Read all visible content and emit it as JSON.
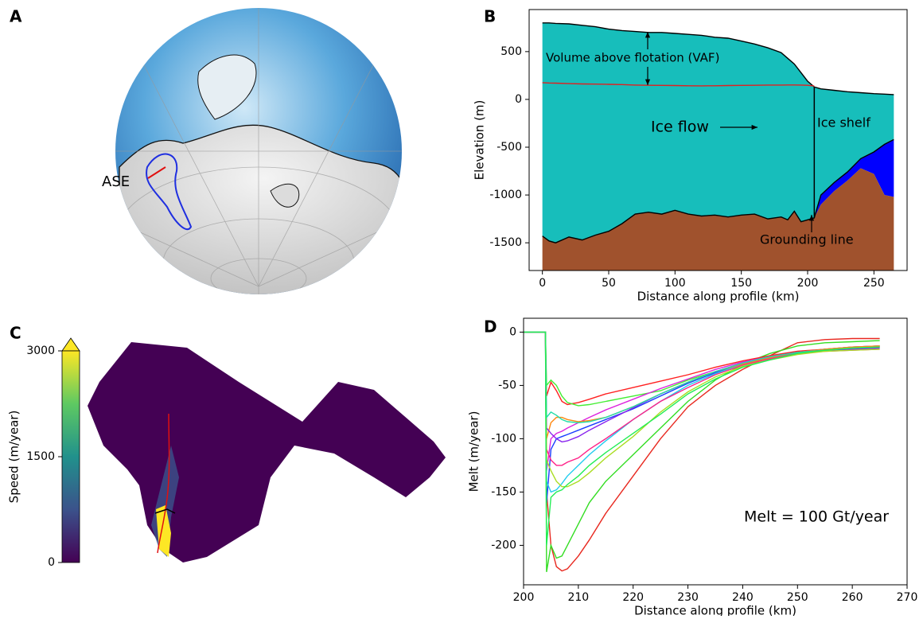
{
  "chart_data": [
    {
      "type": "map",
      "label": "A",
      "annotations": [
        "ASE"
      ]
    },
    {
      "type": "area",
      "label": "B",
      "x": [
        0,
        5,
        10,
        20,
        30,
        40,
        50,
        60,
        70,
        80,
        90,
        100,
        110,
        120,
        130,
        140,
        150,
        160,
        170,
        180,
        185,
        190,
        195,
        200,
        205,
        210,
        220,
        230,
        240,
        250,
        258,
        265
      ],
      "series": [
        {
          "color": "#000000",
          "values": [
            800,
            800,
            795,
            790,
            775,
            760,
            735,
            720,
            710,
            700,
            700,
            690,
            680,
            670,
            650,
            640,
            610,
            580,
            540,
            490,
            430,
            370,
            280,
            190,
            130,
            110,
            95,
            80,
            70,
            60,
            55,
            50
          ]
        },
        {
          "color": "#0000ff",
          "values": [
            -1430,
            -1480,
            -1500,
            -1440,
            -1470,
            -1420,
            -1380,
            -1300,
            -1200,
            -1180,
            -1200,
            -1160,
            -1200,
            -1220,
            -1210,
            -1230,
            -1210,
            -1200,
            -1250,
            -1230,
            -1260,
            -1170,
            -1280,
            -1260,
            -1240,
            -1000,
            -870,
            -760,
            -620,
            -550,
            -470,
            -420
          ]
        },
        {
          "color": "#a0522d",
          "values": [
            -1430,
            -1480,
            -1500,
            -1440,
            -1470,
            -1420,
            -1380,
            -1300,
            -1200,
            -1180,
            -1200,
            -1160,
            -1200,
            -1220,
            -1210,
            -1230,
            -1210,
            -1200,
            -1250,
            -1230,
            -1260,
            -1170,
            -1280,
            -1260,
            -1240,
            -1100,
            -960,
            -850,
            -720,
            -780,
            -1000,
            -1020
          ]
        },
        {
          "color": "#e02020",
          "values": [
            175,
            172,
            170,
            165,
            162,
            160,
            158,
            155,
            150,
            148,
            147,
            145,
            143,
            142,
            143,
            145,
            147,
            148,
            150,
            150,
            151,
            151,
            150,
            148,
            140,
            null,
            null,
            null,
            null,
            null,
            null,
            null
          ]
        }
      ],
      "ice_color": "#17bebb",
      "grounding_line": 205,
      "xlim": [
        -10,
        275
      ],
      "ylim": [
        -1790,
        940
      ],
      "xticks": [
        0,
        50,
        100,
        150,
        200,
        250
      ],
      "yticks": [
        -1500,
        -1000,
        -500,
        0,
        500
      ],
      "xlabel": "Distance along profile (km)",
      "ylabel": "Elevation (m)",
      "annotations": [
        "Volume above flotation (VAF)",
        "Ice flow",
        "Ice shelf",
        "Grounding line"
      ]
    },
    {
      "type": "map",
      "label": "C",
      "colorbar": {
        "label": "Speed (m/year)",
        "lim": [
          0,
          3000
        ],
        "ticks": [
          0,
          1500,
          3000
        ]
      }
    },
    {
      "type": "line",
      "label": "D",
      "x": [
        200,
        204,
        204.2,
        205,
        206,
        207,
        208,
        210,
        212,
        215,
        220,
        225,
        230,
        235,
        240,
        245,
        250,
        255,
        260,
        265
      ],
      "series": [
        {
          "color": "#e8281f",
          "values": [
            0,
            0,
            -150,
            -200,
            -220,
            -224,
            -222,
            -210,
            -195,
            -170,
            -135,
            -100,
            -70,
            -50,
            -35,
            -22,
            -10,
            -7,
            -6,
            -6
          ]
        },
        {
          "color": "#33dd22",
          "values": [
            0,
            0,
            -225,
            -200,
            -212,
            -210,
            -200,
            -180,
            -160,
            -140,
            -115,
            -90,
            -65,
            -45,
            -30,
            -20,
            -13,
            -10,
            -9,
            -8
          ]
        },
        {
          "color": "#ff2020",
          "values": [
            0,
            0,
            -60,
            -47,
            -55,
            -65,
            -68,
            -66,
            -63,
            -58,
            -52,
            -46,
            -40,
            -33,
            -27,
            -22,
            -18,
            -16,
            -14,
            -13
          ]
        },
        {
          "color": "#44ee33",
          "values": [
            0,
            0,
            -50,
            -45,
            -50,
            -60,
            -66,
            -69,
            -68,
            -65,
            -60,
            -55,
            -45,
            -37,
            -30,
            -25,
            -20,
            -17,
            -15,
            -14
          ]
        },
        {
          "color": "#1a3cff",
          "values": [
            0,
            0,
            -160,
            -110,
            -100,
            -98,
            -96,
            -92,
            -88,
            -82,
            -72,
            -60,
            -48,
            -38,
            -30,
            -24,
            -19,
            -16,
            -14,
            -13
          ]
        },
        {
          "color": "#dd22dd",
          "values": [
            0,
            0,
            -130,
            -100,
            -95,
            -93,
            -90,
            -85,
            -80,
            -73,
            -63,
            -53,
            -44,
            -35,
            -28,
            -23,
            -19,
            -17,
            -15,
            -14
          ]
        },
        {
          "color": "#22ccee",
          "values": [
            0,
            0,
            -140,
            -150,
            -148,
            -142,
            -135,
            -125,
            -115,
            -102,
            -82,
            -65,
            -50,
            -39,
            -30,
            -24,
            -19,
            -16,
            -14,
            -13
          ]
        },
        {
          "color": "#ff8811",
          "values": [
            0,
            0,
            -100,
            -85,
            -80,
            -80,
            -82,
            -84,
            -83,
            -80,
            -70,
            -58,
            -47,
            -37,
            -30,
            -24,
            -19,
            -16,
            -14,
            -13
          ]
        },
        {
          "color": "#ff2288",
          "values": [
            0,
            0,
            -110,
            -120,
            -125,
            -125,
            -122,
            -118,
            -110,
            -100,
            -82,
            -65,
            -52,
            -40,
            -31,
            -25,
            -20,
            -18,
            -17,
            -16
          ]
        },
        {
          "color": "#8822ee",
          "values": [
            0,
            0,
            -90,
            -95,
            -100,
            -103,
            -102,
            -98,
            -92,
            -84,
            -71,
            -58,
            -47,
            -37,
            -29,
            -23,
            -19,
            -17,
            -16,
            -15
          ]
        },
        {
          "color": "#aadd22",
          "values": [
            0,
            0,
            -120,
            -130,
            -140,
            -145,
            -145,
            -140,
            -132,
            -118,
            -98,
            -75,
            -56,
            -42,
            -32,
            -26,
            -21,
            -18,
            -17,
            -16
          ]
        },
        {
          "color": "#22ddaa",
          "values": [
            0,
            0,
            -80,
            -75,
            -78,
            -82,
            -84,
            -85,
            -84,
            -80,
            -70,
            -58,
            -47,
            -37,
            -29,
            -23,
            -19,
            -17,
            -15,
            -14
          ]
        },
        {
          "color": "#22ee55",
          "values": [
            0,
            0,
            -200,
            -155,
            -150,
            -148,
            -143,
            -135,
            -125,
            -113,
            -95,
            -77,
            -58,
            -44,
            -33,
            -26,
            -20,
            -17,
            -15,
            -14
          ]
        }
      ],
      "xlim": [
        200,
        270
      ],
      "ylim": [
        -237,
        13
      ],
      "xticks": [
        200,
        210,
        220,
        230,
        240,
        250,
        260,
        270
      ],
      "yticks": [
        -200,
        -150,
        -100,
        -50,
        0
      ],
      "xlabel": "Distance along profile (km)",
      "ylabel": "Melt (m/year)",
      "annotations": [
        "Melt = 100 Gt/year"
      ]
    }
  ]
}
